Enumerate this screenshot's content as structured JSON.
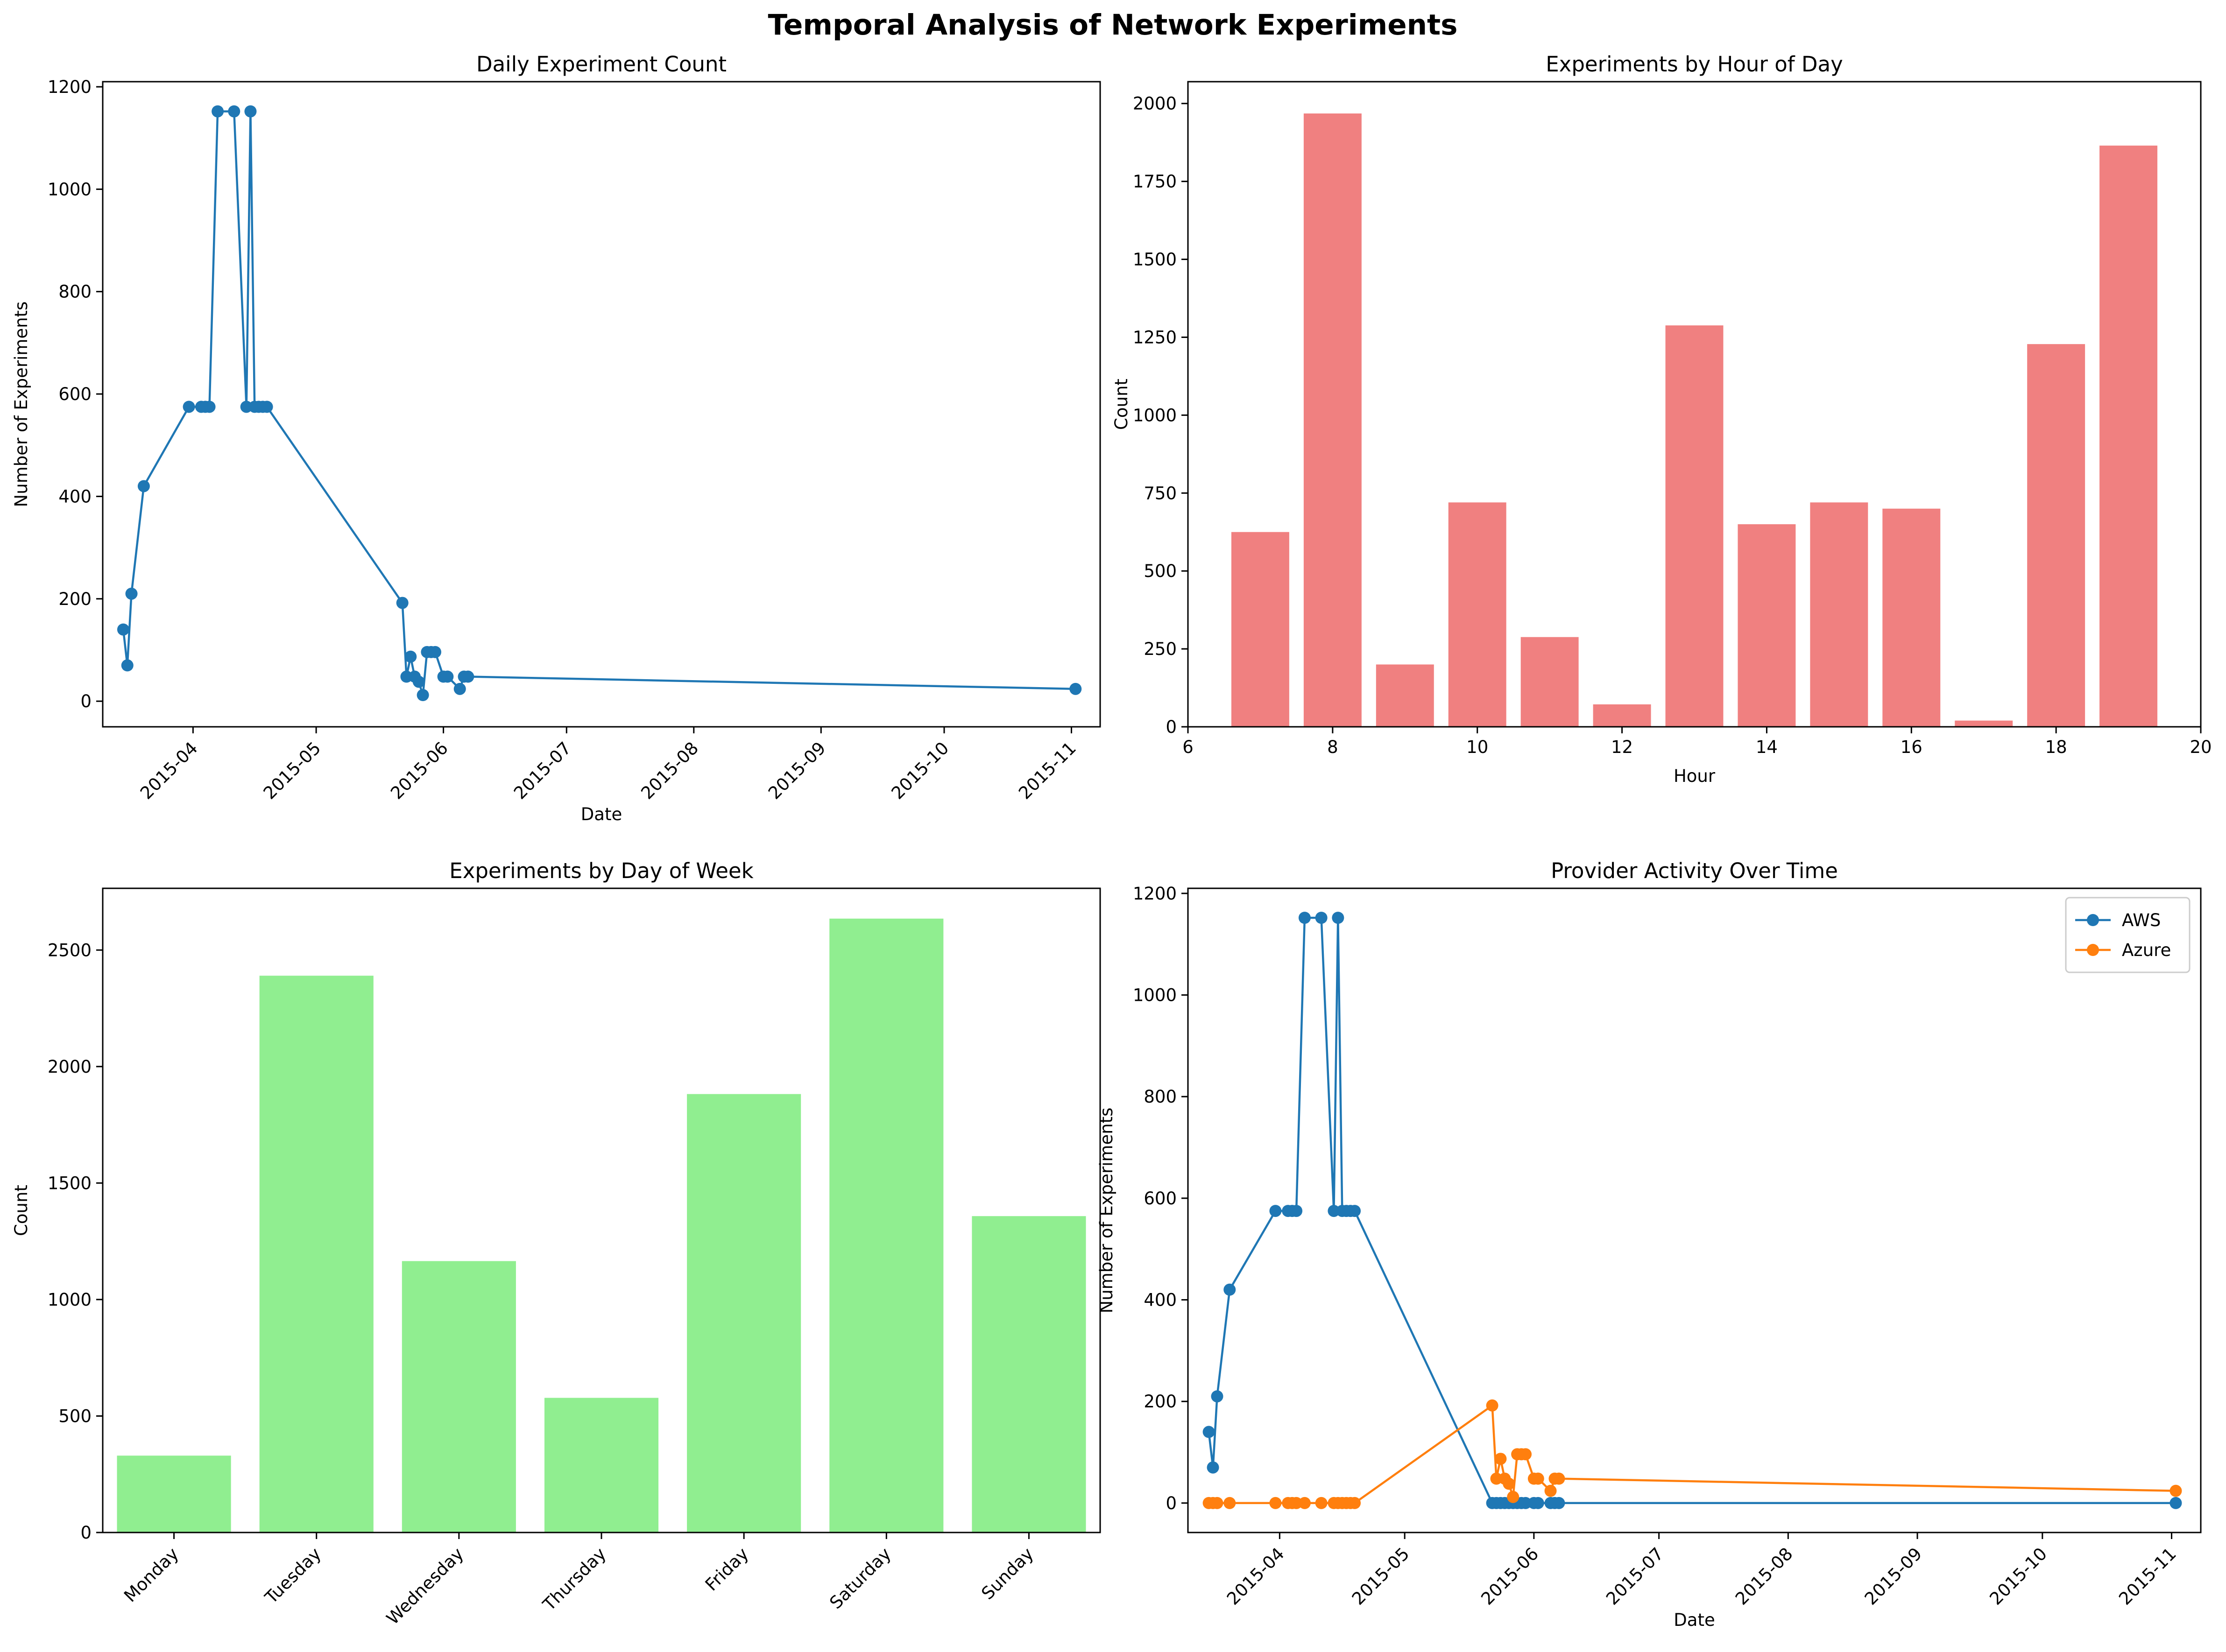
{
  "figure": {
    "title": "Temporal Analysis of Network Experiments"
  },
  "colors": {
    "blue": "#1f77b4",
    "orange": "#ff7f0e",
    "coral": "#f08080",
    "green": "#90ee90"
  },
  "chart_data": [
    {
      "id": "daily",
      "type": "line",
      "title": "Daily Experiment Count",
      "xlabel": "Date",
      "ylabel": "Number of Experiments",
      "x_type": "date",
      "xlim": [
        "2015-03-10",
        "2015-11-08"
      ],
      "ylim": [
        -50,
        1210
      ],
      "xticks": [
        "2015-04-01",
        "2015-05-01",
        "2015-06-01",
        "2015-07-01",
        "2015-08-01",
        "2015-09-01",
        "2015-10-01",
        "2015-11-01"
      ],
      "xtick_labels": [
        "2015-04",
        "2015-05",
        "2015-06",
        "2015-07",
        "2015-08",
        "2015-09",
        "2015-10",
        "2015-11"
      ],
      "yticks": [
        0,
        200,
        400,
        600,
        800,
        1000,
        1200
      ],
      "grid": false,
      "series": [
        {
          "color": "blue",
          "x": [
            "2015-03-15",
            "2015-03-16",
            "2015-03-17",
            "2015-03-20",
            "2015-03-31",
            "2015-04-03",
            "2015-04-04",
            "2015-04-05",
            "2015-04-07",
            "2015-04-11",
            "2015-04-14",
            "2015-04-15",
            "2015-04-16",
            "2015-04-17",
            "2015-04-18",
            "2015-04-19",
            "2015-05-22",
            "2015-05-23",
            "2015-05-24",
            "2015-05-25",
            "2015-05-26",
            "2015-05-27",
            "2015-05-28",
            "2015-05-29",
            "2015-05-30",
            "2015-06-01",
            "2015-06-02",
            "2015-06-05",
            "2015-06-06",
            "2015-06-07",
            "2015-11-02"
          ],
          "y": [
            140,
            70,
            210,
            420,
            575,
            575,
            575,
            575,
            1152,
            1152,
            575,
            1152,
            575,
            575,
            575,
            575,
            192,
            48,
            87,
            48,
            38,
            12,
            96,
            96,
            96,
            48,
            48,
            24,
            48,
            48,
            24
          ]
        }
      ]
    },
    {
      "id": "hourly",
      "type": "bar",
      "title": "Experiments by Hour of Day",
      "xlabel": "Hour",
      "ylabel": "Count",
      "xlim": [
        6,
        20
      ],
      "ylim": [
        0,
        2070
      ],
      "xticks": [
        6,
        8,
        10,
        12,
        14,
        16,
        18,
        20
      ],
      "yticks": [
        0,
        250,
        500,
        750,
        1000,
        1250,
        1500,
        1750,
        2000
      ],
      "bar_width": 0.8,
      "color": "coral",
      "grid": false,
      "x": [
        7,
        8,
        9,
        10,
        11,
        12,
        13,
        14,
        15,
        16,
        17,
        18,
        19
      ],
      "values": [
        625,
        1968,
        200,
        720,
        288,
        72,
        1288,
        650,
        720,
        700,
        20,
        1228,
        1865
      ]
    },
    {
      "id": "weekday",
      "type": "bar",
      "title": "Experiments by Day of Week",
      "xlabel": "",
      "ylabel": "Count",
      "ylim": [
        0,
        2765
      ],
      "yticks": [
        0,
        500,
        1000,
        1500,
        2000,
        2500
      ],
      "bar_width": 0.8,
      "color": "green",
      "grid": false,
      "categories": [
        "Monday",
        "Tuesday",
        "Wednesday",
        "Thursday",
        "Friday",
        "Saturday",
        "Sunday"
      ],
      "values": [
        330,
        2390,
        1165,
        578,
        1882,
        2635,
        1358
      ]
    },
    {
      "id": "provider",
      "type": "line",
      "title": "Provider Activity Over Time",
      "xlabel": "Date",
      "ylabel": "Number of Experiments",
      "x_type": "date",
      "xlim": [
        "2015-03-10",
        "2015-11-08"
      ],
      "ylim": [
        -58,
        1210
      ],
      "xticks": [
        "2015-04-01",
        "2015-05-01",
        "2015-06-01",
        "2015-07-01",
        "2015-08-01",
        "2015-09-01",
        "2015-10-01",
        "2015-11-01"
      ],
      "xtick_labels": [
        "2015-04",
        "2015-05",
        "2015-06",
        "2015-07",
        "2015-08",
        "2015-09",
        "2015-10",
        "2015-11"
      ],
      "yticks": [
        0,
        200,
        400,
        600,
        800,
        1000,
        1200
      ],
      "grid": false,
      "legend": "upper-right",
      "x": [
        "2015-03-15",
        "2015-03-16",
        "2015-03-17",
        "2015-03-20",
        "2015-03-31",
        "2015-04-03",
        "2015-04-04",
        "2015-04-05",
        "2015-04-07",
        "2015-04-11",
        "2015-04-14",
        "2015-04-15",
        "2015-04-16",
        "2015-04-17",
        "2015-04-18",
        "2015-04-19",
        "2015-05-22",
        "2015-05-23",
        "2015-05-24",
        "2015-05-25",
        "2015-05-26",
        "2015-05-27",
        "2015-05-28",
        "2015-05-29",
        "2015-05-30",
        "2015-06-01",
        "2015-06-02",
        "2015-06-05",
        "2015-06-06",
        "2015-06-07",
        "2015-11-02"
      ],
      "series": [
        {
          "name": "AWS",
          "color": "blue",
          "y": [
            140,
            70,
            210,
            420,
            575,
            575,
            575,
            575,
            1152,
            1152,
            575,
            1152,
            575,
            575,
            575,
            575,
            0,
            0,
            0,
            0,
            0,
            0,
            0,
            0,
            0,
            0,
            0,
            0,
            0,
            0,
            0
          ]
        },
        {
          "name": "Azure",
          "color": "orange",
          "y": [
            0,
            0,
            0,
            0,
            0,
            0,
            0,
            0,
            0,
            0,
            0,
            0,
            0,
            0,
            0,
            0,
            192,
            48,
            87,
            48,
            38,
            12,
            96,
            96,
            96,
            48,
            48,
            24,
            48,
            48,
            24
          ]
        }
      ]
    }
  ]
}
